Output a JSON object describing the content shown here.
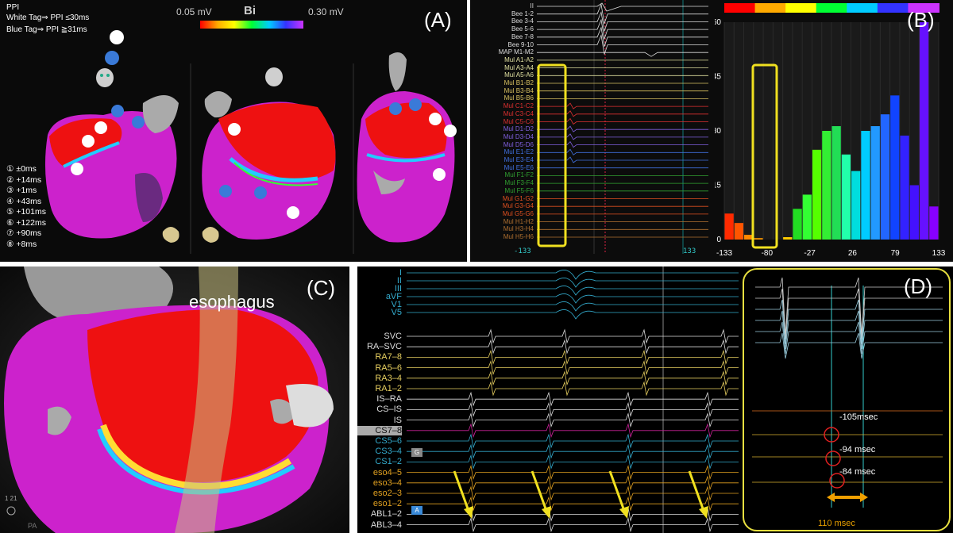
{
  "panel_a": {
    "letter": "(A)",
    "legend_title": "PPI",
    "legend_white": "White Tag⇒ PPI ≤30ms",
    "legend_blue": "Blue Tag⇒ PPI ≧31ms",
    "scale_min": "0.05 mV",
    "scale_mode": "Bi",
    "scale_max": "0.30 mV",
    "ppi_list": [
      "① ±0ms",
      "② +14ms",
      "③ +1ms",
      "④ +43ms",
      "⑤ +101ms",
      "⑥ +122ms",
      "⑦ +90ms",
      "⑧ +8ms"
    ]
  },
  "panel_b": {
    "letter": "(B)",
    "channels": [
      {
        "name": "II",
        "color": "#dddddd"
      },
      {
        "name": "Bee 1-2",
        "color": "#dddddd"
      },
      {
        "name": "Bee 3-4",
        "color": "#dddddd"
      },
      {
        "name": "Bee 5-6",
        "color": "#dddddd"
      },
      {
        "name": "Bee 7-8",
        "color": "#dddddd"
      },
      {
        "name": "Bee 9-10",
        "color": "#dddddd"
      },
      {
        "name": "MAP M1-M2",
        "color": "#dddddd"
      },
      {
        "name": "Mul A1-A2",
        "color": "#e0e0a0"
      },
      {
        "name": "Mul A3-A4",
        "color": "#e0e0a0"
      },
      {
        "name": "Mul A5-A6",
        "color": "#e0e0a0"
      },
      {
        "name": "Mul B1-B2",
        "color": "#d8c060"
      },
      {
        "name": "Mul B3-B4",
        "color": "#d8c060"
      },
      {
        "name": "Mul B5-B6",
        "color": "#d8c060"
      },
      {
        "name": "Mul C1-C2",
        "color": "#e03030"
      },
      {
        "name": "Mul C3-C4",
        "color": "#e03030"
      },
      {
        "name": "Mul C5-C6",
        "color": "#e03030"
      },
      {
        "name": "Mul D1-D2",
        "color": "#8060e0"
      },
      {
        "name": "Mul D3-D4",
        "color": "#8060e0"
      },
      {
        "name": "Mul D5-D6",
        "color": "#8060e0"
      },
      {
        "name": "Mul E1-E2",
        "color": "#4070e0"
      },
      {
        "name": "Mul E3-E4",
        "color": "#4070e0"
      },
      {
        "name": "Mul E5-E6",
        "color": "#4070e0"
      },
      {
        "name": "Mul F1-F2",
        "color": "#30a030"
      },
      {
        "name": "Mul F3-F4",
        "color": "#30a030"
      },
      {
        "name": "Mul F5-F6",
        "color": "#30a030"
      },
      {
        "name": "Mul G1-G2",
        "color": "#e05020"
      },
      {
        "name": "Mul G3-G4",
        "color": "#e05020"
      },
      {
        "name": "Mul G5-G6",
        "color": "#e05020"
      },
      {
        "name": "Mul H1-H2",
        "color": "#b07030"
      },
      {
        "name": "Mul H3-H4",
        "color": "#b07030"
      },
      {
        "name": "Mul H5-H6",
        "color": "#b07030"
      }
    ],
    "time_left": "-133",
    "time_right": "133"
  },
  "chart_data": {
    "type": "bar",
    "title": "",
    "xlabel": "",
    "ylabel": "",
    "x_ticks": [
      "-133",
      "-80",
      "-27",
      "26",
      "79",
      "133"
    ],
    "y_ticks": [
      "0",
      "115",
      "230",
      "345",
      "460"
    ],
    "ylim": [
      0,
      460
    ],
    "xlim": [
      -133,
      133
    ],
    "values": [
      55,
      35,
      10,
      3,
      0,
      0,
      5,
      65,
      95,
      190,
      230,
      240,
      180,
      145,
      230,
      240,
      265,
      305,
      220,
      115,
      460,
      70
    ],
    "bar_colors": [
      "#ff2a00",
      "#ff5500",
      "#ff8800",
      "#ff9900",
      "#ff9900",
      "#ff9900",
      "#ffcc00",
      "#22dd22",
      "#33ff33",
      "#55ff00",
      "#33ee33",
      "#22dd55",
      "#22ffaa",
      "#00dddd",
      "#00ccff",
      "#2299ff",
      "#2266ff",
      "#1144ff",
      "#3322ff",
      "#4411ff",
      "#6611ff",
      "#8800ff"
    ],
    "legend": "none",
    "grid": true
  },
  "panel_c": {
    "letter": "(C)",
    "esophagus_label": "esophagus",
    "corner_scale": "1 21",
    "corner_view": "PA"
  },
  "panel_d": {
    "letter": "(D)",
    "surface_leads": [
      {
        "name": "I",
        "color": "#33aacc"
      },
      {
        "name": "II",
        "color": "#33aacc"
      },
      {
        "name": "III",
        "color": "#33aacc"
      },
      {
        "name": "aVF",
        "color": "#33aacc"
      },
      {
        "name": "V1",
        "color": "#33aacc"
      },
      {
        "name": "V5",
        "color": "#33aacc"
      }
    ],
    "intracardiac_leads": [
      {
        "name": "SVC",
        "color": "#dddddd"
      },
      {
        "name": "RA–SVC",
        "color": "#dddddd"
      },
      {
        "name": "RA7–8",
        "color": "#e8d060"
      },
      {
        "name": "RA5–6",
        "color": "#e8d060"
      },
      {
        "name": "RA3–4",
        "color": "#e8d060"
      },
      {
        "name": "RA1–2",
        "color": "#e8d060"
      },
      {
        "name": "IS–RA",
        "color": "#dddddd"
      },
      {
        "name": "CS–IS",
        "color": "#dddddd"
      },
      {
        "name": "IS",
        "color": "#dddddd"
      },
      {
        "name": "CS7–8",
        "color": "#111111"
      },
      {
        "name": "CS5–6",
        "color": "#33aacc"
      },
      {
        "name": "CS3–4",
        "color": "#33aacc"
      },
      {
        "name": "CS1–2",
        "color": "#33aacc"
      },
      {
        "name": "eso4–5",
        "color": "#e0a020"
      },
      {
        "name": "eso3–4",
        "color": "#e0a020"
      },
      {
        "name": "eso2–3",
        "color": "#e0a020"
      },
      {
        "name": "eso1–2",
        "color": "#e0a020"
      },
      {
        "name": "ABL1–2",
        "color": "#dddddd"
      },
      {
        "name": "ABL3–4",
        "color": "#dddddd"
      }
    ],
    "marker_box": "G",
    "marker_a": "A",
    "inset_delays": [
      "-105msec",
      "-94 msec",
      "-84 msec"
    ],
    "inset_interval": "110 msec"
  }
}
